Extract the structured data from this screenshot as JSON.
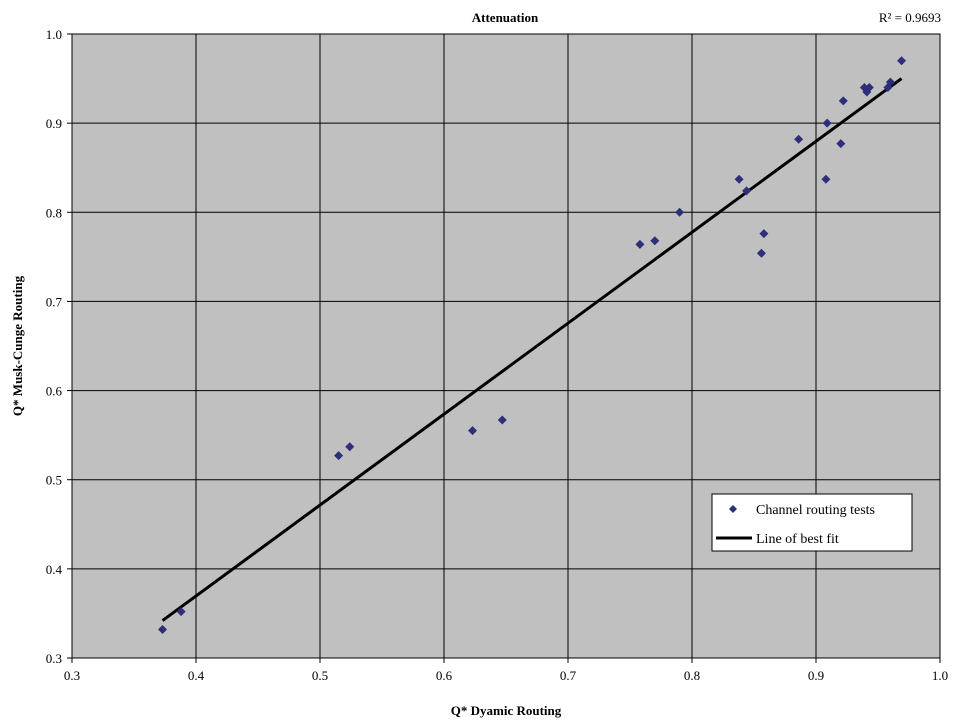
{
  "chart_data": {
    "type": "scatter",
    "title": "Attenuation",
    "annotation": "R² = 0.9693",
    "xlabel": "Q* Dyamic Routing",
    "ylabel": "Q* Musk-Cunge Routing",
    "xlim": [
      0.3,
      1.0
    ],
    "ylim": [
      0.3,
      1.0
    ],
    "xticks": [
      "0.3",
      "0.4",
      "0.5",
      "0.6",
      "0.7",
      "0.8",
      "0.9",
      "1.0"
    ],
    "yticks": [
      "0.3",
      "0.4",
      "0.5",
      "0.6",
      "0.7",
      "0.8",
      "0.9",
      "1.0"
    ],
    "grid": true,
    "legend_position": "bottom-right",
    "plot_background": "#c0c0c0",
    "series": [
      {
        "name": "Channel routing tests",
        "type": "scatter",
        "marker": "diamond",
        "color": "#2e2e7a",
        "points": [
          [
            0.373,
            0.332
          ],
          [
            0.388,
            0.352
          ],
          [
            0.515,
            0.527
          ],
          [
            0.524,
            0.537
          ],
          [
            0.623,
            0.555
          ],
          [
            0.647,
            0.567
          ],
          [
            0.758,
            0.764
          ],
          [
            0.77,
            0.768
          ],
          [
            0.79,
            0.8
          ],
          [
            0.838,
            0.837
          ],
          [
            0.844,
            0.824
          ],
          [
            0.856,
            0.754
          ],
          [
            0.858,
            0.776
          ],
          [
            0.886,
            0.882
          ],
          [
            0.908,
            0.837
          ],
          [
            0.909,
            0.9
          ],
          [
            0.92,
            0.877
          ],
          [
            0.922,
            0.925
          ],
          [
            0.939,
            0.94
          ],
          [
            0.941,
            0.935
          ],
          [
            0.943,
            0.94
          ],
          [
            0.958,
            0.94
          ],
          [
            0.96,
            0.946
          ],
          [
            0.969,
            0.97
          ]
        ]
      },
      {
        "name": "Line of best fit",
        "type": "line",
        "color": "#000000",
        "points": [
          [
            0.373,
            0.342
          ],
          [
            0.969,
            0.95
          ]
        ]
      }
    ]
  }
}
